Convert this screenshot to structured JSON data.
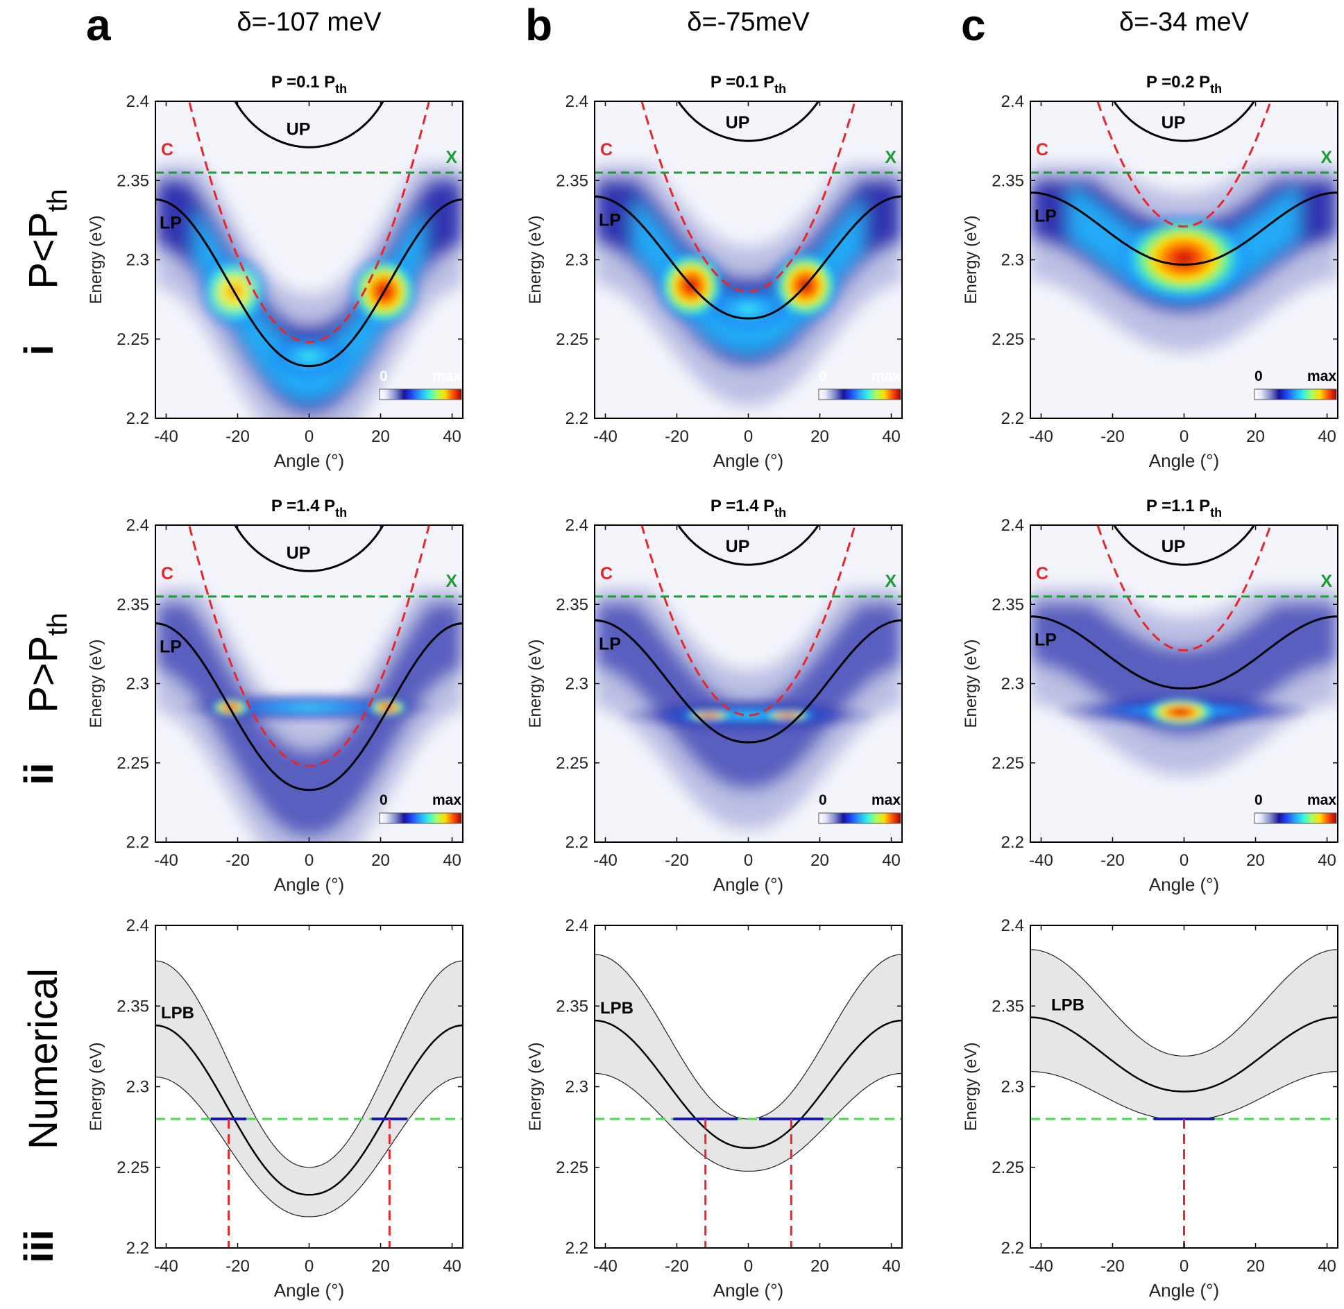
{
  "figure": {
    "columns": [
      {
        "letter": "a",
        "detuning": "δ=-107 meV"
      },
      {
        "letter": "b",
        "detuning": "δ=-75meV"
      },
      {
        "letter": "c",
        "detuning": "δ=-34 meV"
      }
    ],
    "rows": [
      {
        "numeral": "i",
        "label": "P<P",
        "sub": "th"
      },
      {
        "numeral": "ii",
        "label": "P>P",
        "sub": "th"
      },
      {
        "numeral": "iii",
        "label": "Numerical",
        "sub": ""
      }
    ],
    "colorbar": {
      "min_label": "0",
      "max_label": "max"
    },
    "curve_labels": {
      "up": "UP",
      "lp": "LP",
      "c": "C",
      "x": "X",
      "lpb": "LPB"
    },
    "colors": {
      "lp": "#000000",
      "up": "#000000",
      "cavity": "#e8262a",
      "exciton": "#1e9a36",
      "numeric_band": "#e6e6e6",
      "numeric_level": "#44dd44",
      "numeric_segment": "#1515c8"
    }
  },
  "chart_data": [
    {
      "id": "a-i",
      "type": "heatmap",
      "title": "P =0.1 P",
      "title_sub": "th",
      "xlabel": "Angle (°)",
      "ylabel": "Energy (eV)",
      "xlim": [
        -43,
        43
      ],
      "ylim": [
        2.2,
        2.4
      ],
      "xticks": [
        -40,
        -20,
        0,
        20,
        40
      ],
      "yticks": [
        2.2,
        2.25,
        2.3,
        2.35,
        2.4
      ],
      "detuning_eV": -0.107,
      "lp_min_eV": 2.233,
      "up_min_eV": 2.371,
      "cavity_min_eV": 2.248,
      "exciton_eV": 2.355
    },
    {
      "id": "b-i",
      "type": "heatmap",
      "title": "P =0.1 P",
      "title_sub": "th",
      "xlabel": "Angle (°)",
      "ylabel": "Energy (eV)",
      "xlim": [
        -43,
        43
      ],
      "ylim": [
        2.2,
        2.4
      ],
      "xticks": [
        -40,
        -20,
        0,
        20,
        40
      ],
      "yticks": [
        2.2,
        2.25,
        2.3,
        2.35,
        2.4
      ],
      "detuning_eV": -0.075,
      "lp_min_eV": 2.263,
      "up_min_eV": 2.375,
      "cavity_min_eV": 2.28,
      "exciton_eV": 2.355
    },
    {
      "id": "c-i",
      "type": "heatmap",
      "title": "P =0.2 P",
      "title_sub": "th",
      "xlabel": "Angle (°)",
      "ylabel": "Energy (eV)",
      "xlim": [
        -43,
        43
      ],
      "ylim": [
        2.2,
        2.4
      ],
      "xticks": [
        -40,
        -20,
        0,
        20,
        40
      ],
      "yticks": [
        2.2,
        2.25,
        2.3,
        2.35,
        2.4
      ],
      "detuning_eV": -0.034,
      "lp_min_eV": 2.297,
      "up_min_eV": 2.375,
      "cavity_min_eV": 2.321,
      "exciton_eV": 2.355
    },
    {
      "id": "a-ii",
      "type": "heatmap",
      "title": "P =1.4 P",
      "title_sub": "th",
      "xlabel": "Angle (°)",
      "ylabel": "Energy (eV)",
      "xlim": [
        -43,
        43
      ],
      "ylim": [
        2.2,
        2.4
      ],
      "xticks": [
        -40,
        -20,
        0,
        20,
        40
      ],
      "yticks": [
        2.2,
        2.25,
        2.3,
        2.35,
        2.4
      ],
      "detuning_eV": -0.107,
      "lp_min_eV": 2.233,
      "up_min_eV": 2.371,
      "cavity_min_eV": 2.248,
      "exciton_eV": 2.355,
      "condensate_eV": 2.285
    },
    {
      "id": "b-ii",
      "type": "heatmap",
      "title": "P =1.4 P",
      "title_sub": "th",
      "xlabel": "Angle (°)",
      "ylabel": "Energy (eV)",
      "xlim": [
        -43,
        43
      ],
      "ylim": [
        2.2,
        2.4
      ],
      "xticks": [
        -40,
        -20,
        0,
        20,
        40
      ],
      "yticks": [
        2.2,
        2.25,
        2.3,
        2.35,
        2.4
      ],
      "detuning_eV": -0.075,
      "lp_min_eV": 2.263,
      "up_min_eV": 2.375,
      "cavity_min_eV": 2.28,
      "exciton_eV": 2.355,
      "condensate_eV": 2.28
    },
    {
      "id": "c-ii",
      "type": "heatmap",
      "title": "P =1.1 P",
      "title_sub": "th",
      "xlabel": "Angle (°)",
      "ylabel": "Energy (eV)",
      "xlim": [
        -43,
        43
      ],
      "ylim": [
        2.2,
        2.4
      ],
      "xticks": [
        -40,
        -20,
        0,
        20,
        40
      ],
      "yticks": [
        2.2,
        2.25,
        2.3,
        2.35,
        2.4
      ],
      "detuning_eV": -0.034,
      "lp_min_eV": 2.297,
      "up_min_eV": 2.375,
      "cavity_min_eV": 2.321,
      "exciton_eV": 2.355,
      "condensate_eV": 2.283
    },
    {
      "id": "a-iii",
      "type": "line",
      "title": "",
      "xlabel": "Angle (°)",
      "ylabel": "Energy (eV)",
      "xlim": [
        -43,
        43
      ],
      "ylim": [
        2.2,
        2.4
      ],
      "xticks": [
        -40,
        -20,
        0,
        20,
        40
      ],
      "yticks": [
        2.2,
        2.25,
        2.3,
        2.35,
        2.4
      ],
      "lpb_min_eV": 2.233,
      "lpb_edge_eV": 2.338,
      "band_halfwidth_eV": 0.017,
      "band_halfwidth_edge_eV": 0.04,
      "level_eV": 2.28,
      "level_angles_deg": [
        -22.5,
        22.5
      ]
    },
    {
      "id": "b-iii",
      "type": "line",
      "title": "",
      "xlabel": "Angle (°)",
      "ylabel": "Energy (eV)",
      "xlim": [
        -43,
        43
      ],
      "ylim": [
        2.2,
        2.4
      ],
      "xticks": [
        -40,
        -20,
        0,
        20,
        40
      ],
      "yticks": [
        2.2,
        2.25,
        2.3,
        2.35,
        2.4
      ],
      "lpb_min_eV": 2.262,
      "lpb_edge_eV": 2.341,
      "band_halfwidth_eV": 0.018,
      "band_halfwidth_edge_eV": 0.041,
      "level_eV": 2.28,
      "level_angles_deg": [
        -12,
        12
      ]
    },
    {
      "id": "c-iii",
      "type": "line",
      "title": "",
      "xlabel": "Angle (°)",
      "ylabel": "Energy (eV)",
      "xlim": [
        -43,
        43
      ],
      "ylim": [
        2.2,
        2.4
      ],
      "xticks": [
        -40,
        -20,
        0,
        20,
        40
      ],
      "yticks": [
        2.2,
        2.25,
        2.3,
        2.35,
        2.4
      ],
      "lpb_min_eV": 2.297,
      "lpb_edge_eV": 2.343,
      "band_halfwidth_eV": 0.022,
      "band_halfwidth_edge_eV": 0.042,
      "level_eV": 2.28,
      "level_angles_deg": [
        0
      ]
    }
  ]
}
